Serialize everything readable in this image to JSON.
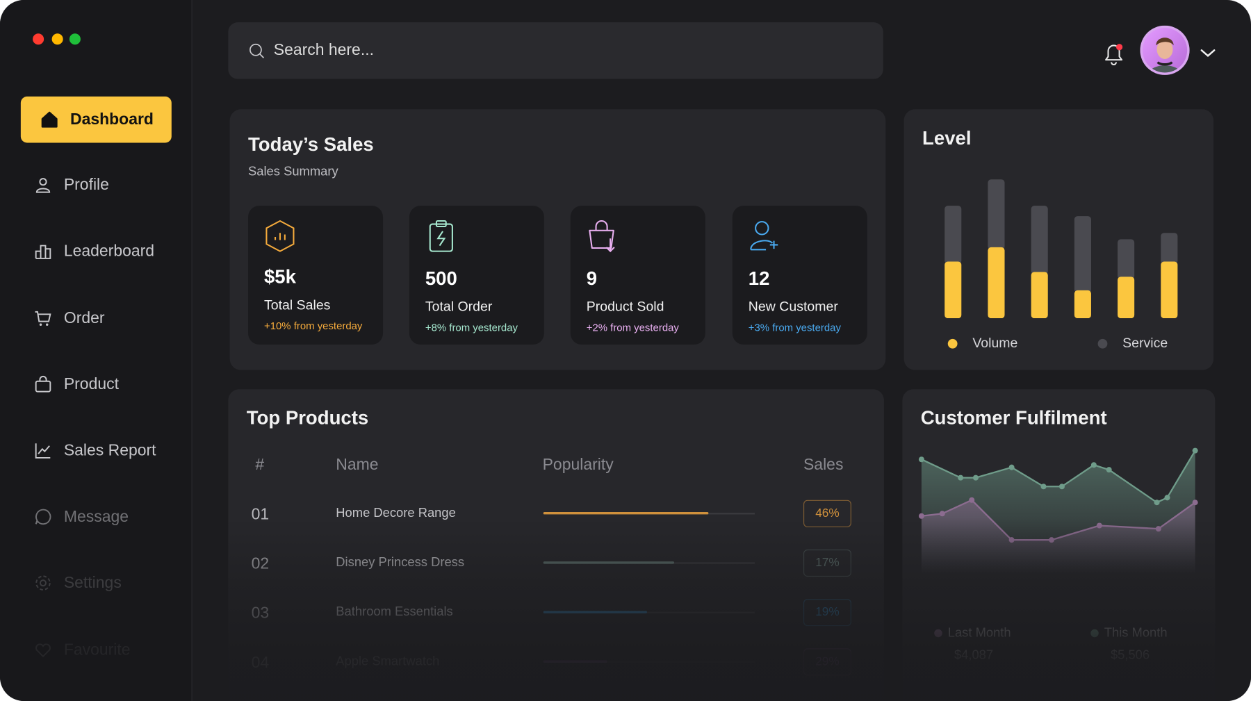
{
  "sidebar": {
    "items": [
      {
        "label": "Dashboard",
        "active": true
      },
      {
        "label": "Profile"
      },
      {
        "label": "Leaderboard"
      },
      {
        "label": "Order"
      },
      {
        "label": "Product"
      },
      {
        "label": "Sales Report"
      },
      {
        "label": "Message"
      },
      {
        "label": "Settings"
      },
      {
        "label": "Favourite"
      }
    ]
  },
  "search": {
    "placeholder": "Search here..."
  },
  "todays_sales": {
    "title": "Today’s Sales",
    "subtitle": "Sales Summary",
    "cards": [
      {
        "value": "$5k",
        "label": "Total Sales",
        "change": "+10% from yesterday",
        "color": "#f5ab3c"
      },
      {
        "value": "500",
        "label": "Total Order",
        "change": "+8% from yesterday",
        "color": "#a6e8cf"
      },
      {
        "value": "9",
        "label": "Product Sold",
        "change": "+2% from yesterday",
        "color": "#eab0f2"
      },
      {
        "value": "12",
        "label": "New Customer",
        "change": "+3% from yesterday",
        "color": "#4aaaf0"
      }
    ]
  },
  "top_products": {
    "title": "Top Products",
    "columns": [
      "#",
      "Name",
      "Popularity",
      "Sales"
    ],
    "popularity_max": 100,
    "rows": [
      {
        "rank": "01",
        "name": "Home Decore Range",
        "popularity": 78,
        "sales": "46%",
        "color": "#d0913c"
      },
      {
        "rank": "02",
        "name": "Disney Princess Dress",
        "popularity": 62,
        "sales": "17%",
        "color": "#5d6f6c"
      },
      {
        "rank": "03",
        "name": "Bathroom Essentials",
        "popularity": 49,
        "sales": "19%",
        "color": "#2f78a8"
      },
      {
        "rank": "04",
        "name": "Apple Smartwatch",
        "popularity": 30,
        "sales": "29%",
        "color": "#8a5aa0"
      }
    ]
  },
  "chart_data": [
    {
      "type": "bar",
      "stacked": true,
      "title": "Level",
      "ylim": [
        0,
        180
      ],
      "series": [
        {
          "name": "Volume",
          "color": "#fbc63f",
          "values": [
            71,
            89,
            58,
            35,
            52,
            71
          ]
        },
        {
          "name": "Service",
          "color": "#4a4a50",
          "values": [
            70,
            85,
            83,
            93,
            47,
            36
          ]
        }
      ]
    },
    {
      "type": "area",
      "title": "Customer Fulfilment",
      "xlim": [
        0,
        343
      ],
      "ylim": [
        0,
        160
      ],
      "series": [
        {
          "name": "Last Month",
          "total": "$4,087",
          "color": "#8c6c90",
          "x": [
            0,
            26,
            63,
            113,
            163,
            223,
            297,
            343
          ],
          "values": [
            73,
            76,
            93,
            43,
            43,
            61,
            57,
            90
          ]
        },
        {
          "name": "This Month",
          "total": "$5,506",
          "color": "#6f9c8a",
          "x": [
            0,
            49,
            68,
            113,
            153,
            176,
            216,
            235,
            295,
            308,
            343
          ],
          "values": [
            144,
            121,
            121,
            134,
            110,
            110,
            137,
            131,
            90,
            96,
            155
          ]
        }
      ]
    }
  ]
}
